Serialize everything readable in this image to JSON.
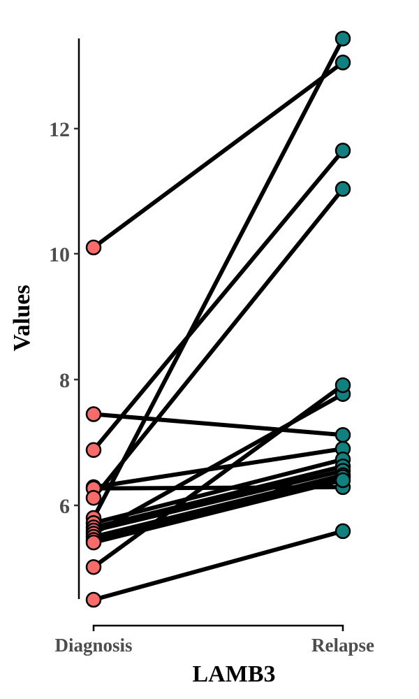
{
  "chart_data": {
    "type": "line",
    "subtype": "paired-slope",
    "title": "",
    "xlabel": "LAMB3",
    "ylabel": "Values",
    "categories": [
      "Diagnosis",
      "Relapse"
    ],
    "ylim": [
      4.4,
      13.55
    ],
    "yticks": [
      6,
      8,
      10,
      12
    ],
    "grid": false,
    "legend": null,
    "colors": {
      "Diagnosis": "#F86B6B",
      "Relapse": "#138080",
      "line": "#000000"
    },
    "pairs": [
      {
        "diagnosis": 10.1,
        "relapse": 13.04
      },
      {
        "diagnosis": 7.45,
        "relapse": 7.12
      },
      {
        "diagnosis": 6.88,
        "relapse": 11.64
      },
      {
        "diagnosis": 6.29,
        "relapse": 6.9
      },
      {
        "diagnosis": 6.27,
        "relapse": 6.29
      },
      {
        "diagnosis": 6.12,
        "relapse": 11.03
      },
      {
        "diagnosis": 5.8,
        "relapse": 13.42
      },
      {
        "diagnosis": 5.72,
        "relapse": 6.73
      },
      {
        "diagnosis": 5.65,
        "relapse": 6.62
      },
      {
        "diagnosis": 5.6,
        "relapse": 6.55
      },
      {
        "diagnosis": 5.55,
        "relapse": 7.77
      },
      {
        "diagnosis": 5.5,
        "relapse": 6.48
      },
      {
        "diagnosis": 5.45,
        "relapse": 6.45
      },
      {
        "diagnosis": 5.41,
        "relapse": 6.4
      },
      {
        "diagnosis": 5.02,
        "relapse": 7.91
      },
      {
        "diagnosis": 4.5,
        "relapse": 5.59
      }
    ]
  },
  "axes": {
    "y_title": "Values",
    "x_title": "LAMB3",
    "y_ticks": [
      "6",
      "8",
      "10",
      "12"
    ],
    "x_ticks": [
      "Diagnosis",
      "Relapse"
    ]
  }
}
